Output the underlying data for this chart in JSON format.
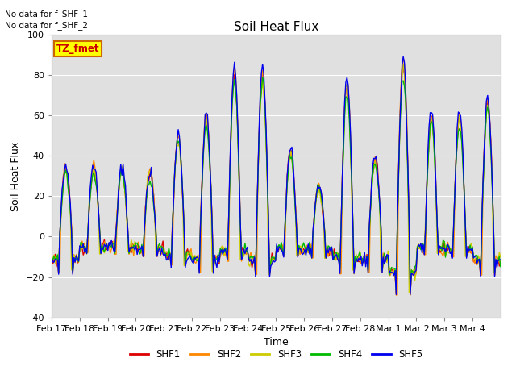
{
  "title": "Soil Heat Flux",
  "xlabel": "Time",
  "ylabel": "Soil Heat Flux",
  "ylim": [
    -40,
    100
  ],
  "yticks": [
    -40,
    -20,
    0,
    20,
    40,
    60,
    80,
    100
  ],
  "background_color": "#ffffff",
  "plot_bg_color": "#e0e0e0",
  "annotation_lines": [
    "No data for f_SHF_1",
    "No data for f_SHF_2"
  ],
  "box_label": "TZ_fmet",
  "box_color": "#ffff00",
  "box_border": "#cc6600",
  "legend_entries": [
    {
      "label": "SHF1",
      "color": "#dd0000"
    },
    {
      "label": "SHF2",
      "color": "#ff8800"
    },
    {
      "label": "SHF3",
      "color": "#cccc00"
    },
    {
      "label": "SHF4",
      "color": "#00bb00"
    },
    {
      "label": "SHF5",
      "color": "#0000ee"
    }
  ],
  "x_tick_labels": [
    "Feb 17",
    "Feb 18",
    "Feb 19",
    "Feb 20",
    "Feb 21",
    "Feb 22",
    "Feb 23",
    "Feb 24",
    "Feb 25",
    "Feb 26",
    "Feb 27",
    "Feb 28",
    "Mar 1",
    "Mar 2",
    "Mar 3",
    "Mar 4"
  ],
  "shf_colors": [
    "#dd0000",
    "#ff8800",
    "#cccc00",
    "#00bb00",
    "#0000ee"
  ],
  "linewidth": 1.0,
  "figsize": [
    6.4,
    4.8
  ],
  "dpi": 100
}
